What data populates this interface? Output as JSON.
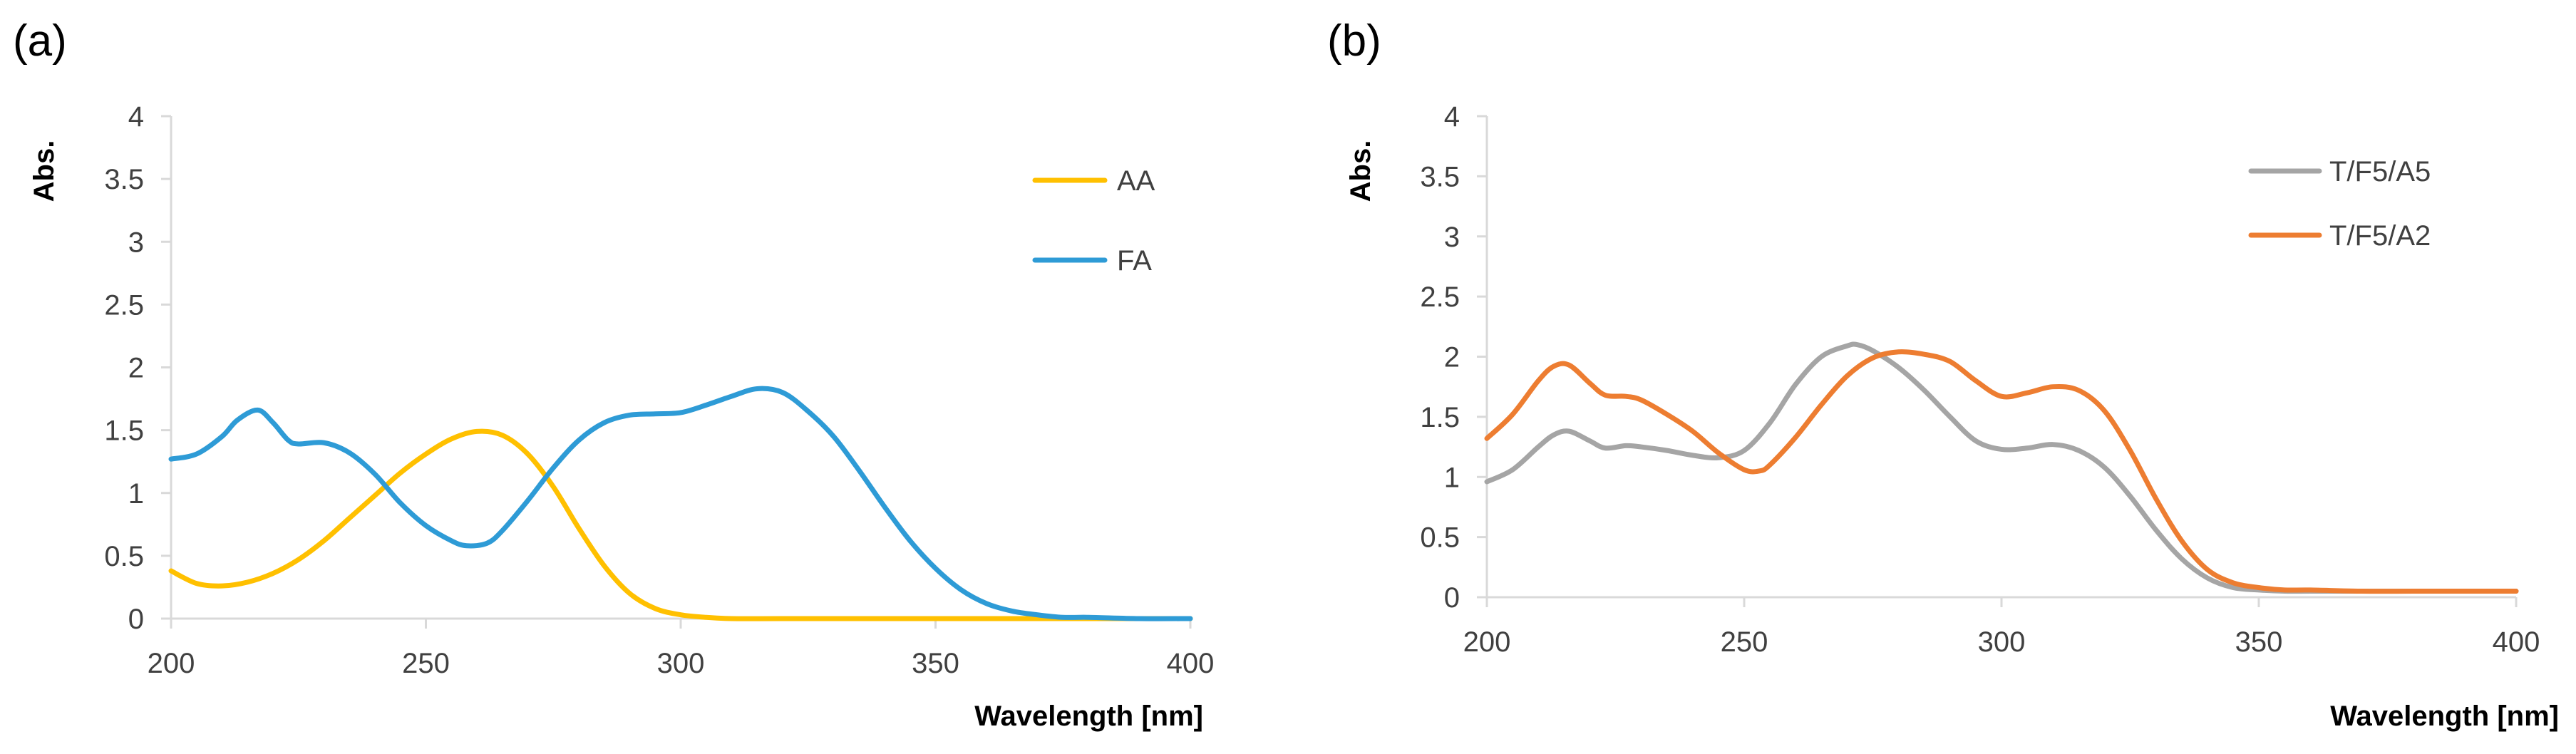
{
  "chart_data": [
    {
      "panel": "(a)",
      "type": "line",
      "title": "",
      "xlabel": "Wavelength [nm]",
      "ylabel": "Abs.",
      "xlim": [
        200,
        400
      ],
      "ylim": [
        0,
        4
      ],
      "xticks": [
        200,
        250,
        300,
        350,
        400
      ],
      "yticks": [
        0,
        0.5,
        1,
        1.5,
        2,
        2.5,
        3,
        3.5,
        4
      ],
      "xtick_labels": [
        "200",
        "250",
        "300",
        "350",
        "400"
      ],
      "ytick_labels": [
        "0",
        "0.5",
        "1",
        "1.5",
        "2",
        "2.5",
        "3",
        "3.5",
        "4"
      ],
      "grid": false,
      "legend": "top-right",
      "series": [
        {
          "name": "AA",
          "color": "#FFC000",
          "x": [
            200,
            205,
            210,
            215,
            220,
            225,
            230,
            235,
            240,
            245,
            250,
            255,
            260,
            265,
            270,
            275,
            280,
            285,
            290,
            295,
            300,
            305,
            310,
            320,
            340,
            360,
            380,
            400
          ],
          "y": [
            0.38,
            0.28,
            0.26,
            0.29,
            0.36,
            0.47,
            0.62,
            0.8,
            0.98,
            1.16,
            1.31,
            1.43,
            1.49,
            1.46,
            1.31,
            1.05,
            0.72,
            0.42,
            0.2,
            0.08,
            0.03,
            0.01,
            0.0,
            0.0,
            0.0,
            0.0,
            0.0,
            0.0
          ]
        },
        {
          "name": "FA",
          "color": "#2E9BD6",
          "x": [
            200,
            205,
            210,
            213,
            217,
            220,
            223,
            225,
            230,
            235,
            240,
            245,
            250,
            255,
            258,
            262,
            265,
            270,
            275,
            280,
            285,
            290,
            295,
            300,
            305,
            310,
            315,
            320,
            325,
            330,
            335,
            340,
            345,
            350,
            355,
            360,
            365,
            370,
            375,
            380,
            390,
            400
          ],
          "y": [
            1.27,
            1.31,
            1.45,
            1.58,
            1.66,
            1.56,
            1.42,
            1.39,
            1.4,
            1.32,
            1.15,
            0.92,
            0.74,
            0.62,
            0.58,
            0.6,
            0.7,
            0.94,
            1.2,
            1.42,
            1.56,
            1.62,
            1.63,
            1.64,
            1.7,
            1.77,
            1.83,
            1.8,
            1.65,
            1.45,
            1.18,
            0.89,
            0.62,
            0.4,
            0.23,
            0.12,
            0.06,
            0.03,
            0.01,
            0.01,
            0.0,
            0.0
          ]
        }
      ]
    },
    {
      "panel": "(b)",
      "type": "line",
      "title": "",
      "xlabel": "Wavelength [nm]",
      "ylabel": "Abs.",
      "xlim": [
        200,
        400
      ],
      "ylim": [
        0,
        4
      ],
      "xticks": [
        200,
        250,
        300,
        350,
        400
      ],
      "yticks": [
        0,
        0.5,
        1,
        1.5,
        2,
        2.5,
        3,
        3.5,
        4
      ],
      "xtick_labels": [
        "200",
        "250",
        "300",
        "350",
        "400"
      ],
      "ytick_labels": [
        "0",
        "0.5",
        "1",
        "1.5",
        "2",
        "2.5",
        "3",
        "3.5",
        "4"
      ],
      "grid": false,
      "legend": "top-right",
      "series": [
        {
          "name": "T/F5/A5",
          "color": "#A5A5A5",
          "x": [
            200,
            205,
            210,
            213,
            216,
            220,
            223,
            227,
            230,
            235,
            240,
            245,
            250,
            255,
            260,
            265,
            270,
            272,
            275,
            280,
            285,
            290,
            295,
            300,
            305,
            310,
            315,
            320,
            325,
            330,
            335,
            340,
            345,
            350,
            355,
            360,
            370,
            380,
            390,
            400
          ],
          "y": [
            0.96,
            1.06,
            1.25,
            1.35,
            1.38,
            1.3,
            1.24,
            1.26,
            1.25,
            1.22,
            1.18,
            1.16,
            1.22,
            1.45,
            1.77,
            2.0,
            2.09,
            2.1,
            2.05,
            1.91,
            1.72,
            1.5,
            1.3,
            1.23,
            1.24,
            1.27,
            1.22,
            1.08,
            0.84,
            0.56,
            0.32,
            0.16,
            0.08,
            0.06,
            0.05,
            0.05,
            0.05,
            0.05,
            0.05,
            0.05
          ]
        },
        {
          "name": "T/F5/A2",
          "color": "#ED7D31",
          "x": [
            200,
            205,
            210,
            213,
            216,
            220,
            223,
            227,
            230,
            235,
            240,
            245,
            250,
            253,
            255,
            260,
            265,
            270,
            275,
            280,
            285,
            290,
            295,
            300,
            305,
            310,
            315,
            320,
            325,
            330,
            335,
            340,
            345,
            350,
            355,
            360,
            370,
            380,
            390,
            400
          ],
          "y": [
            1.32,
            1.52,
            1.8,
            1.92,
            1.93,
            1.78,
            1.68,
            1.67,
            1.64,
            1.52,
            1.38,
            1.2,
            1.06,
            1.05,
            1.1,
            1.33,
            1.6,
            1.84,
            1.99,
            2.04,
            2.02,
            1.96,
            1.8,
            1.67,
            1.7,
            1.75,
            1.72,
            1.55,
            1.22,
            0.82,
            0.47,
            0.23,
            0.12,
            0.08,
            0.06,
            0.06,
            0.05,
            0.05,
            0.05,
            0.05
          ]
        }
      ]
    }
  ]
}
